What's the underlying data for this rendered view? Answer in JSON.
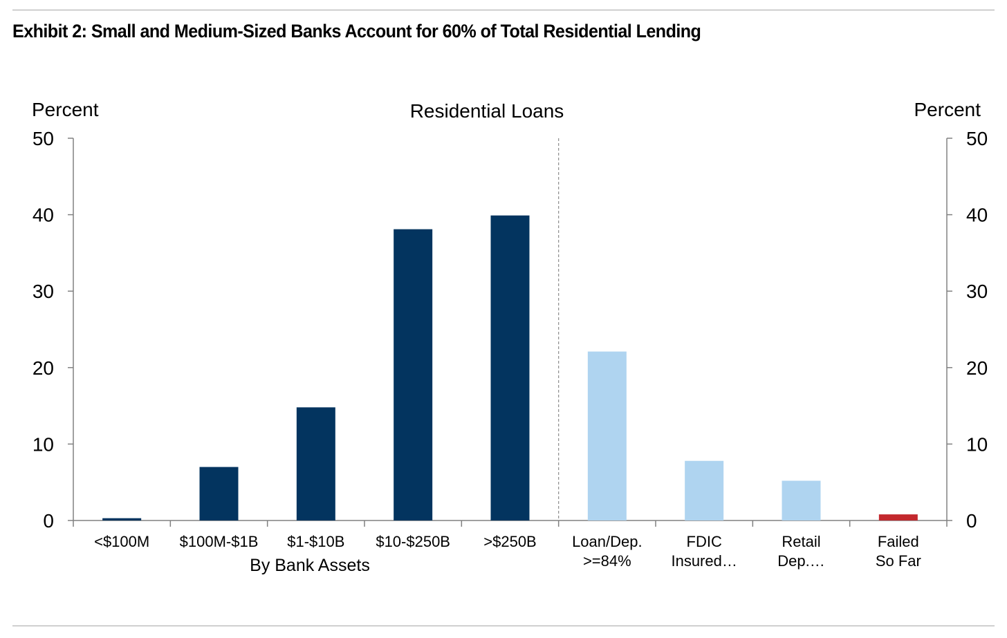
{
  "title": "Exhibit 2: Small and Medium-Sized Banks Account for 60% of Total Residential Lending",
  "colors": {
    "dark": "#03345f",
    "light": "#afd4f0",
    "red": "#c3282d"
  },
  "chart_data": {
    "type": "bar",
    "title": "Residential Loans",
    "ylabel_left": "Percent",
    "ylabel_right": "Percent",
    "ylim": [
      0,
      50
    ],
    "yticks": [
      "0",
      "10",
      "20",
      "30",
      "40",
      "50"
    ],
    "group_label": "By Bank Assets",
    "grid": false,
    "categories": [
      {
        "label": [
          "<$100M"
        ],
        "value": 0.3,
        "color": "dark"
      },
      {
        "label": [
          "$100M-$1B"
        ],
        "value": 7.0,
        "color": "dark"
      },
      {
        "label": [
          "$1-$10B"
        ],
        "value": 14.8,
        "color": "dark"
      },
      {
        "label": [
          "$10-$250B"
        ],
        "value": 38.1,
        "color": "dark"
      },
      {
        "label": [
          ">$250B"
        ],
        "value": 39.9,
        "color": "dark"
      },
      {
        "label": [
          "Loan/Dep.",
          ">=84%"
        ],
        "value": 22.1,
        "color": "light"
      },
      {
        "label": [
          "FDIC",
          "Insured…"
        ],
        "value": 7.8,
        "color": "light"
      },
      {
        "label": [
          "Retail",
          "Dep.…"
        ],
        "value": 5.2,
        "color": "light"
      },
      {
        "label": [
          "Failed",
          "So Far"
        ],
        "value": 0.8,
        "color": "red"
      }
    ]
  }
}
